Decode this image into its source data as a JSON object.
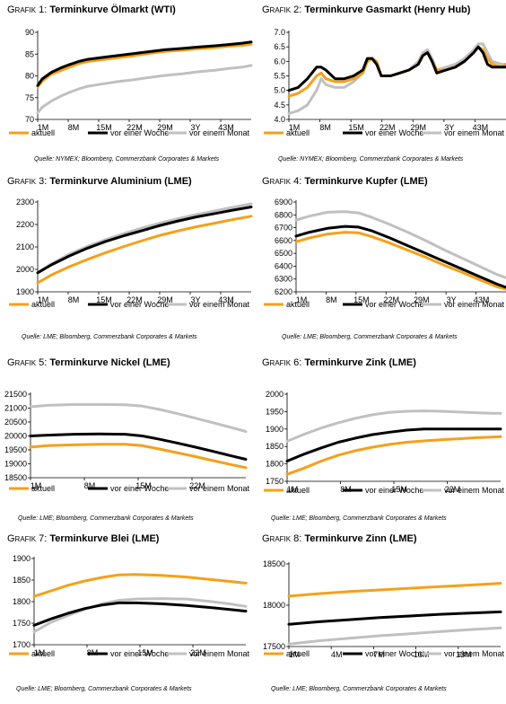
{
  "colors": {
    "aktuell": "#f5a01a",
    "woche": "#000000",
    "monat": "#c0c0c0"
  },
  "legend": [
    "aktuell",
    "vor einer Woche",
    "vor einem Monat"
  ],
  "chart_data": [
    {
      "type": "line",
      "label": "Grafik 1:",
      "title": "Terminkurve Ölmarkt (WTI)",
      "source": "Quelle: NYMEX; Bloomberg, Commerzbank Corporates & Markets",
      "xlabels": [
        "1M",
        "8M",
        "15M",
        "22M",
        "29M",
        "3Y",
        "43M"
      ],
      "ylim": [
        70,
        90
      ],
      "yticks": [
        "70",
        "75",
        "80",
        "85",
        "90"
      ],
      "x": [
        1,
        2,
        4,
        6,
        8,
        10,
        12,
        15,
        18,
        22,
        26,
        29,
        33,
        36,
        40,
        43,
        46,
        48
      ],
      "series": [
        {
          "name": "aktuell",
          "values": [
            77.5,
            78.8,
            80.4,
            81.2,
            82.0,
            82.8,
            83.3,
            83.7,
            84.1,
            84.6,
            85.2,
            85.6,
            85.9,
            86.2,
            86.5,
            86.8,
            87.0,
            87.3
          ]
        },
        {
          "name": "vor einer Woche",
          "values": [
            77.8,
            79.3,
            80.8,
            81.8,
            82.6,
            83.3,
            83.8,
            84.2,
            84.6,
            85.1,
            85.6,
            86.0,
            86.3,
            86.6,
            86.9,
            87.2,
            87.5,
            87.8
          ]
        },
        {
          "name": "vor einem Monat",
          "values": [
            71.5,
            72.8,
            74.2,
            75.3,
            76.2,
            77.0,
            77.6,
            78.1,
            78.6,
            79.1,
            79.7,
            80.1,
            80.5,
            80.9,
            81.3,
            81.7,
            82.0,
            82.4
          ]
        }
      ]
    },
    {
      "type": "line",
      "label": "Grafik 2:",
      "title": "Terminkurve Gasmarkt (Henry Hub)",
      "source": "Quelle: NYMEX; Bloomberg, Commerzbank Corporates & Markets",
      "xlabels": [
        "1M",
        "8M",
        "15M",
        "22M",
        "29M",
        "3Y",
        "43M"
      ],
      "ylim": [
        4.0,
        7.0
      ],
      "yticks": [
        "4.0",
        "4.5",
        "5.0",
        "5.5",
        "6.0",
        "6.5",
        "7.0"
      ],
      "x": [
        1,
        3,
        5,
        7,
        8,
        9,
        11,
        13,
        15,
        17,
        18,
        19,
        20,
        21,
        23,
        25,
        27,
        29,
        30,
        31,
        32,
        33,
        35,
        37,
        39,
        41,
        42,
        43,
        44,
        45,
        47,
        48
      ],
      "series": [
        {
          "name": "aktuell",
          "values": [
            4.8,
            4.9,
            5.1,
            5.5,
            5.6,
            5.4,
            5.3,
            5.3,
            5.4,
            5.6,
            6.0,
            6.1,
            6.0,
            5.5,
            5.5,
            5.6,
            5.7,
            5.9,
            6.2,
            6.3,
            6.0,
            5.7,
            5.7,
            5.8,
            6.0,
            6.3,
            6.5,
            6.4,
            6.1,
            5.9,
            5.8,
            5.9
          ]
        },
        {
          "name": "vor einer Woche",
          "values": [
            5.0,
            5.1,
            5.4,
            5.8,
            5.8,
            5.7,
            5.4,
            5.4,
            5.5,
            5.7,
            6.1,
            6.1,
            5.9,
            5.5,
            5.5,
            5.6,
            5.7,
            5.9,
            6.2,
            6.3,
            6.0,
            5.6,
            5.7,
            5.8,
            6.0,
            6.3,
            6.5,
            6.3,
            5.9,
            5.8,
            5.8,
            5.8
          ]
        },
        {
          "name": "vor einem Monat",
          "values": [
            4.2,
            4.3,
            4.5,
            5.0,
            5.4,
            5.2,
            5.1,
            5.1,
            5.3,
            5.6,
            6.0,
            6.1,
            6.0,
            5.5,
            5.5,
            5.6,
            5.7,
            6.0,
            6.3,
            6.4,
            6.1,
            5.7,
            5.8,
            5.9,
            6.1,
            6.4,
            6.6,
            6.6,
            6.3,
            6.0,
            5.9,
            5.9
          ]
        }
      ]
    },
    {
      "type": "line",
      "label": "Grafik 3:",
      "title": "Terminkurve Aluminium (LME)",
      "source": "Quelle: LME; Bloomberg, Commerzbank Corporates & Markets",
      "xlabels": [
        "1M",
        "8M",
        "15M",
        "22M",
        "29M",
        "3Y",
        "43M"
      ],
      "ylim": [
        1900,
        2300
      ],
      "yticks": [
        "1900",
        "2000",
        "2100",
        "2200",
        "2300"
      ],
      "x": [
        1,
        4,
        8,
        12,
        16,
        20,
        24,
        28,
        32,
        36,
        40,
        44,
        48
      ],
      "series": [
        {
          "name": "aktuell",
          "values": [
            1940,
            1975,
            2012,
            2045,
            2075,
            2102,
            2128,
            2152,
            2172,
            2190,
            2206,
            2222,
            2237
          ]
        },
        {
          "name": "vor einer Woche",
          "values": [
            1985,
            2020,
            2060,
            2095,
            2125,
            2150,
            2173,
            2196,
            2216,
            2234,
            2249,
            2264,
            2278
          ]
        },
        {
          "name": "vor einem Monat",
          "values": [
            1985,
            2025,
            2068,
            2103,
            2133,
            2160,
            2185,
            2207,
            2227,
            2245,
            2261,
            2277,
            2292
          ]
        }
      ]
    },
    {
      "type": "line",
      "label": "Grafik 4:",
      "title": "Terminkurve Kupfer (LME)",
      "source": "Quelle: LME; Bloomberg, Commerzbank Corporates & Markets",
      "xlabels": [
        "1M",
        "8M",
        "15M",
        "22M",
        "29M",
        "3Y",
        "43M"
      ],
      "ylim": [
        6200,
        6900
      ],
      "yticks": [
        "6200",
        "6300",
        "6400",
        "6500",
        "6600",
        "6700",
        "6800",
        "6900"
      ],
      "x": [
        1,
        4,
        8,
        12,
        15,
        18,
        22,
        26,
        30,
        34,
        38,
        42,
        46,
        48
      ],
      "series": [
        {
          "name": "aktuell",
          "values": [
            6590,
            6620,
            6650,
            6665,
            6660,
            6630,
            6580,
            6525,
            6470,
            6410,
            6355,
            6295,
            6240,
            6220
          ]
        },
        {
          "name": "vor einer Woche",
          "values": [
            6635,
            6665,
            6695,
            6710,
            6705,
            6675,
            6620,
            6560,
            6500,
            6440,
            6380,
            6320,
            6260,
            6235
          ]
        },
        {
          "name": "vor einem Monat",
          "values": [
            6760,
            6790,
            6820,
            6825,
            6815,
            6780,
            6725,
            6665,
            6600,
            6530,
            6465,
            6400,
            6335,
            6310
          ]
        }
      ]
    },
    {
      "type": "line",
      "label": "Grafik 5:",
      "title": "Terminkurve Nickel (LME)",
      "source": "Quelle: LME; Bloomberg, Commerzbank Corporates & Markets",
      "xlabels": [
        "1M",
        "8M",
        "15M",
        "22M"
      ],
      "ylim": [
        18500,
        21500
      ],
      "yticks": [
        "18500",
        "19000",
        "19500",
        "20000",
        "20500",
        "21000",
        "21500"
      ],
      "x": [
        1,
        3,
        6,
        9,
        12,
        14,
        16,
        18,
        20,
        22,
        24,
        26
      ],
      "series": [
        {
          "name": "aktuell",
          "values": [
            19600,
            19650,
            19680,
            19700,
            19700,
            19650,
            19530,
            19400,
            19270,
            19130,
            18990,
            18860
          ]
        },
        {
          "name": "vor einer Woche",
          "values": [
            20000,
            20030,
            20060,
            20070,
            20060,
            20000,
            19880,
            19750,
            19610,
            19460,
            19310,
            19160
          ]
        },
        {
          "name": "vor einem Monat",
          "values": [
            21050,
            21100,
            21130,
            21130,
            21120,
            21070,
            20950,
            20810,
            20650,
            20490,
            20330,
            20160
          ]
        }
      ]
    },
    {
      "type": "line",
      "label": "Grafik 6:",
      "title": "Terminkurve Zink (LME)",
      "source": "Quelle: LME; Bloomberg, Commerzbank Corporates & Markets",
      "xlabels": [
        "1M",
        "8M",
        "15M",
        "22M"
      ],
      "ylim": [
        1750,
        2000
      ],
      "yticks": [
        "1750",
        "1800",
        "1850",
        "1900",
        "1950",
        "2000"
      ],
      "x": [
        1,
        3,
        5,
        7,
        9,
        11,
        13,
        15,
        17,
        19,
        21,
        23,
        25,
        26
      ],
      "series": [
        {
          "name": "aktuell",
          "values": [
            1770,
            1788,
            1808,
            1825,
            1838,
            1848,
            1856,
            1862,
            1866,
            1869,
            1872,
            1875,
            1877,
            1878
          ]
        },
        {
          "name": "vor einer Woche",
          "values": [
            1808,
            1828,
            1846,
            1862,
            1874,
            1884,
            1891,
            1897,
            1900,
            1900,
            1900,
            1900,
            1900,
            1900
          ]
        },
        {
          "name": "vor einem Monat",
          "values": [
            1865,
            1885,
            1903,
            1918,
            1931,
            1941,
            1948,
            1951,
            1952,
            1951,
            1949,
            1947,
            1945,
            1945
          ]
        }
      ]
    },
    {
      "type": "line",
      "label": "Grafik 7:",
      "title": "Terminkurve Blei (LME)",
      "source": "Quelle: LME; Bloomberg, Commerzbank Corporates & Markets",
      "xlabels": [
        "1M",
        "8M",
        "15M",
        "22M"
      ],
      "ylim": [
        1700,
        1900
      ],
      "yticks": [
        "1700",
        "1750",
        "1800",
        "1850",
        "1900"
      ],
      "x": [
        1,
        3,
        5,
        7,
        9,
        11,
        13,
        16,
        19,
        22,
        24,
        26
      ],
      "series": [
        {
          "name": "aktuell",
          "values": [
            1812,
            1825,
            1838,
            1848,
            1856,
            1862,
            1863,
            1861,
            1857,
            1851,
            1847,
            1843
          ]
        },
        {
          "name": "vor einer Woche",
          "values": [
            1745,
            1760,
            1773,
            1784,
            1792,
            1797,
            1797,
            1795,
            1791,
            1786,
            1782,
            1778
          ]
        },
        {
          "name": "vor einem Monat",
          "values": [
            1730,
            1752,
            1768,
            1782,
            1795,
            1803,
            1806,
            1807,
            1806,
            1800,
            1795,
            1789
          ]
        }
      ]
    },
    {
      "type": "line",
      "label": "Grafik 8:",
      "title": "Terminkurve Zinn (LME)",
      "source": "Quelle: LME; Bloomberg, Commerzbank Corporates & Markets",
      "xlabels": [
        "1M",
        "4M",
        "7M",
        "10M",
        "13M"
      ],
      "ylim": [
        17500,
        18500
      ],
      "yticks": [
        "17500",
        "18000",
        "18500"
      ],
      "x": [
        1,
        3,
        5,
        7,
        9,
        11,
        13,
        15
      ],
      "series": [
        {
          "name": "aktuell",
          "values": [
            18110,
            18140,
            18165,
            18185,
            18205,
            18225,
            18245,
            18265
          ]
        },
        {
          "name": "vor einer Woche",
          "values": [
            17770,
            17800,
            17825,
            17850,
            17870,
            17890,
            17905,
            17920
          ]
        },
        {
          "name": "vor einem Monat",
          "values": [
            17530,
            17570,
            17600,
            17630,
            17655,
            17680,
            17705,
            17725
          ]
        }
      ]
    }
  ]
}
